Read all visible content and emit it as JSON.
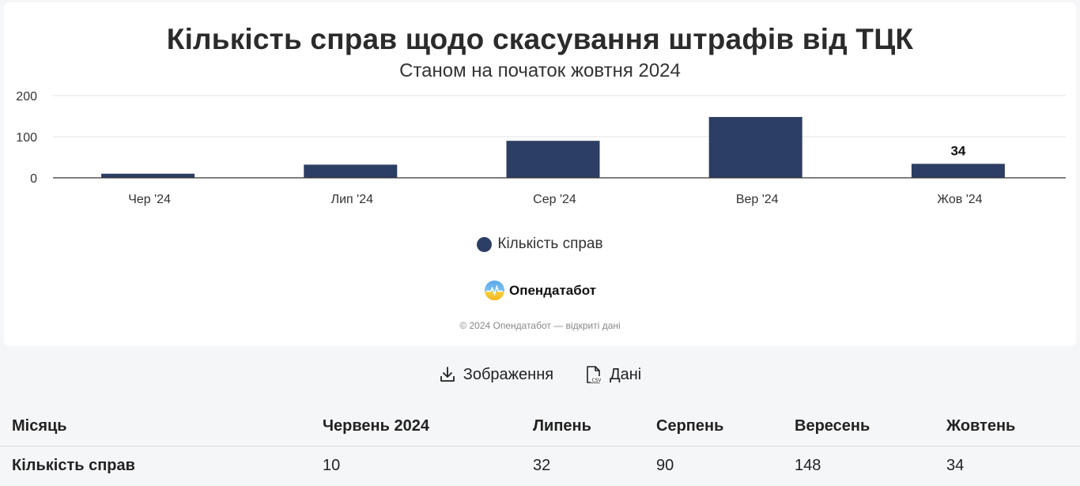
{
  "chart_data": {
    "type": "bar",
    "title": "Кількість справ щодо скасування штрафів від ТЦК",
    "subtitle": "Станом на початок жовтня 2024",
    "categories": [
      "Чер '24",
      "Лип '24",
      "Сер '24",
      "Вер '24",
      "Жов '24"
    ],
    "series": [
      {
        "name": "Кількість справ",
        "values": [
          10,
          32,
          90,
          148,
          34
        ],
        "color": "#2c3e63"
      }
    ],
    "data_labels": [
      null,
      null,
      null,
      null,
      "34"
    ],
    "yticks": [
      0,
      100,
      200
    ],
    "ylim": [
      0,
      200
    ],
    "grid": true,
    "legend_position": "bottom-center"
  },
  "brand": {
    "name": "Опендатабот"
  },
  "copyright": "© 2024 Опендатабот — відкриті дані",
  "downloads": {
    "image_label": "Зображення",
    "data_label": "Дані"
  },
  "table": {
    "headers": [
      "Місяць",
      "Червень 2024",
      "Липень",
      "Серпень",
      "Вересень",
      "Жовтень"
    ],
    "row": [
      "Кількість справ",
      "10",
      "32",
      "90",
      "148",
      "34"
    ]
  }
}
